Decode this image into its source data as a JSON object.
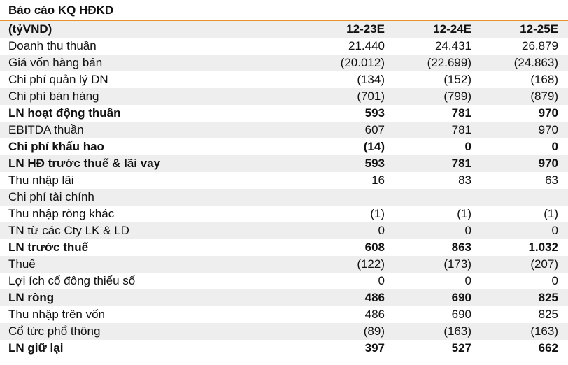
{
  "title": "Báo cáo KQ HĐKD",
  "header": {
    "unit": "(tỷVND)",
    "periods": [
      "12-23E",
      "12-24E",
      "12-25E"
    ]
  },
  "rows": [
    {
      "label": "Doanh thu thuần",
      "values": [
        "21.440",
        "24.431",
        "26.879"
      ],
      "bold": false
    },
    {
      "label": "Giá vốn hàng bán",
      "values": [
        "(20.012)",
        "(22.699)",
        "(24.863)"
      ],
      "bold": false
    },
    {
      "label": "Chi phí quản lý DN",
      "values": [
        "(134)",
        "(152)",
        "(168)"
      ],
      "bold": false
    },
    {
      "label": "Chi phí bán hàng",
      "values": [
        "(701)",
        "(799)",
        "(879)"
      ],
      "bold": false
    },
    {
      "label": "LN hoạt động thuần",
      "values": [
        "593",
        "781",
        "970"
      ],
      "bold": true
    },
    {
      "label": "EBITDA thuần",
      "values": [
        "607",
        "781",
        "970"
      ],
      "bold": false
    },
    {
      "label": "Chi phí khấu hao",
      "values": [
        "(14)",
        "0",
        "0"
      ],
      "bold": true
    },
    {
      "label": "LN HĐ trước thuế & lãi vay",
      "values": [
        "593",
        "781",
        "970"
      ],
      "bold": true
    },
    {
      "label": "Thu nhập lãi",
      "values": [
        "16",
        "83",
        "63"
      ],
      "bold": false
    },
    {
      "label": "Chi phí tài chính",
      "values": [
        "",
        "",
        ""
      ],
      "bold": false
    },
    {
      "label": "Thu nhập ròng khác",
      "values": [
        "(1)",
        "(1)",
        "(1)"
      ],
      "bold": false
    },
    {
      "label": "TN từ các Cty LK & LD",
      "values": [
        "0",
        "0",
        "0"
      ],
      "bold": false
    },
    {
      "label": "LN trước thuế",
      "values": [
        "608",
        "863",
        "1.032"
      ],
      "bold": true
    },
    {
      "label": "Thuế",
      "values": [
        "(122)",
        "(173)",
        "(207)"
      ],
      "bold": false
    },
    {
      "label": "Lợi ích cổ đông thiểu số",
      "values": [
        "0",
        "0",
        "0"
      ],
      "bold": false
    },
    {
      "label": "LN ròng",
      "values": [
        "486",
        "690",
        "825"
      ],
      "bold": true
    },
    {
      "label": "Thu nhập trên vốn",
      "values": [
        "486",
        "690",
        "825"
      ],
      "bold": false
    },
    {
      "label": "Cổ tức phổ thông",
      "values": [
        "(89)",
        "(163)",
        "(163)"
      ],
      "bold": false
    },
    {
      "label": "LN giữ lại",
      "values": [
        "397",
        "527",
        "662"
      ],
      "bold": true
    }
  ]
}
